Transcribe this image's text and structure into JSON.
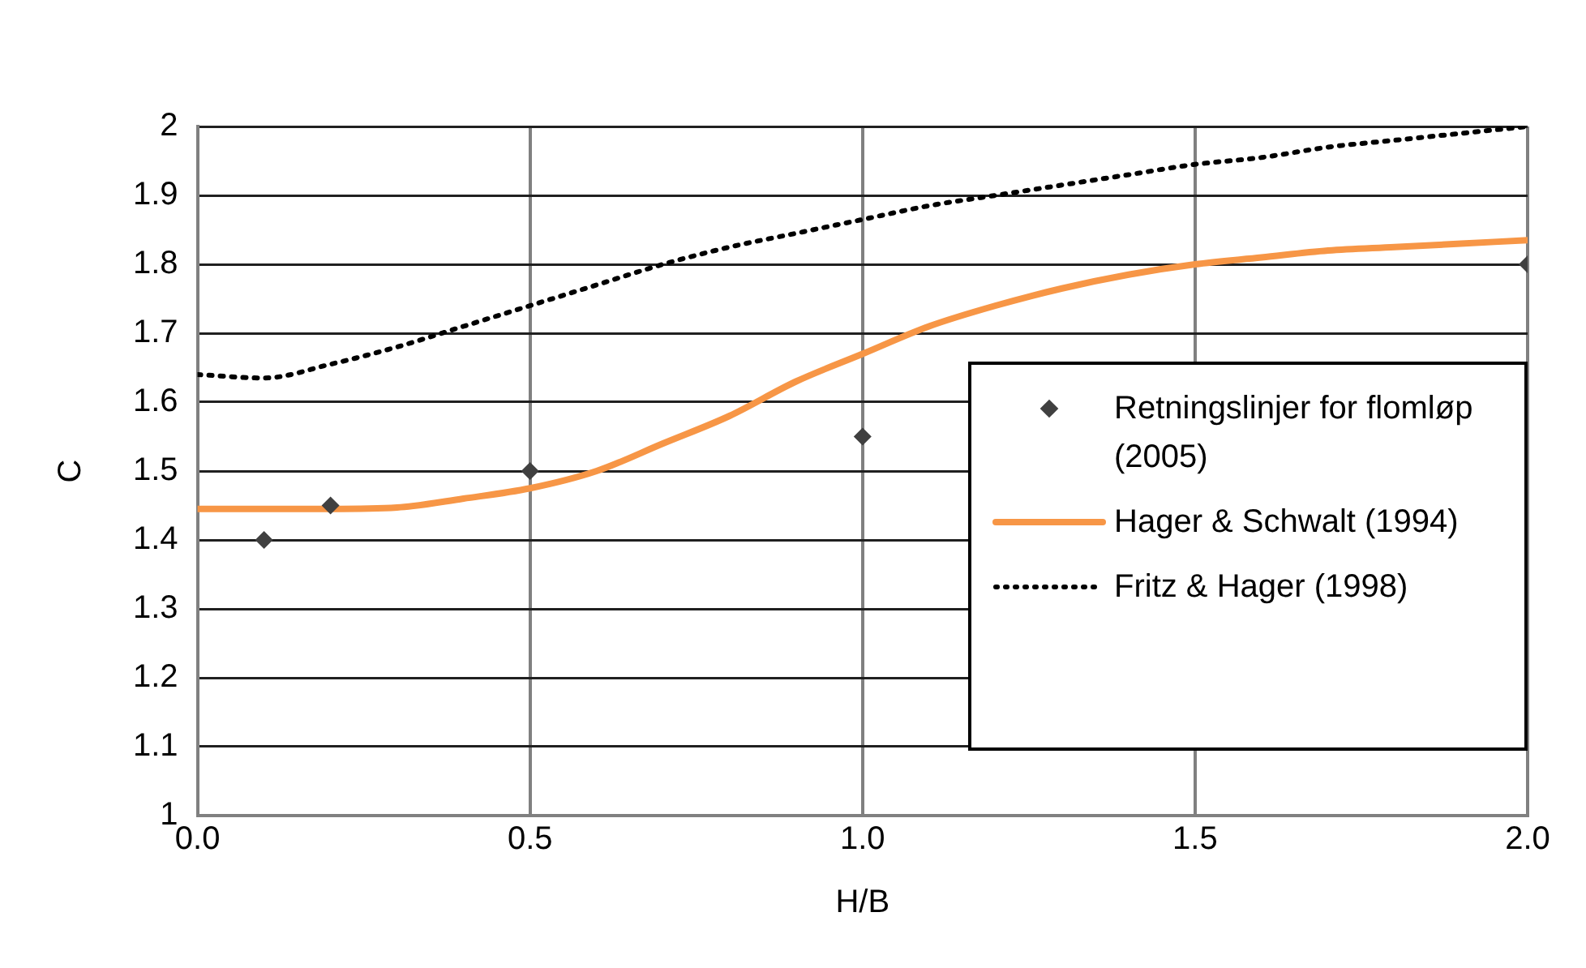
{
  "chart_data": {
    "type": "line",
    "xlabel": "H/B",
    "ylabel": "C",
    "xlim": [
      0,
      2
    ],
    "xticks": [
      {
        "value": 0,
        "label": "0.0"
      },
      {
        "value": 0.5,
        "label": "0.5"
      },
      {
        "value": 1,
        "label": "1.0"
      },
      {
        "value": 1.5,
        "label": "1.5"
      },
      {
        "value": 2,
        "label": "2.0"
      }
    ],
    "ylim": [
      1,
      2
    ],
    "yticks": [
      1,
      1.1,
      1.2,
      1.3,
      1.4,
      1.5,
      1.6,
      1.7,
      1.8,
      1.9,
      2
    ],
    "grid": true,
    "legend": "right",
    "series": [
      {
        "name": "Retningslinjer for flomløp (2005)",
        "type": "scatter",
        "marker": "diamond",
        "color": "#404040",
        "x": [
          0.1,
          0.2,
          0.5,
          1.0,
          2.0
        ],
        "values": [
          1.4,
          1.45,
          1.5,
          1.55,
          1.8
        ]
      },
      {
        "name": "Hager & Schwalt (1994)",
        "type": "line",
        "line_style": "solid",
        "color": "#f79646",
        "x": [
          0,
          0.1,
          0.2,
          0.3,
          0.4,
          0.5,
          0.6,
          0.7,
          0.8,
          0.9,
          1.0,
          1.1,
          1.2,
          1.3,
          1.4,
          1.5,
          1.6,
          1.7,
          1.8,
          1.9,
          2.0
        ],
        "values": [
          1.445,
          1.445,
          1.445,
          1.447,
          1.46,
          1.475,
          1.5,
          1.54,
          1.58,
          1.63,
          1.67,
          1.71,
          1.74,
          1.765,
          1.785,
          1.8,
          1.81,
          1.82,
          1.825,
          1.83,
          1.835
        ]
      },
      {
        "name": "Fritz & Hager (1998)",
        "type": "line",
        "line_style": "dotted",
        "color": "#000000",
        "x": [
          0,
          0.1,
          0.2,
          0.3,
          0.4,
          0.5,
          0.6,
          0.7,
          0.8,
          0.9,
          1.0,
          1.1,
          1.2,
          1.3,
          1.4,
          1.5,
          1.6,
          1.7,
          1.8,
          1.9,
          2.0
        ],
        "values": [
          1.64,
          1.635,
          1.655,
          1.68,
          1.71,
          1.74,
          1.77,
          1.8,
          1.825,
          1.845,
          1.865,
          1.885,
          1.9,
          1.915,
          1.93,
          1.945,
          1.955,
          1.97,
          1.98,
          1.99,
          2.0
        ]
      }
    ]
  }
}
